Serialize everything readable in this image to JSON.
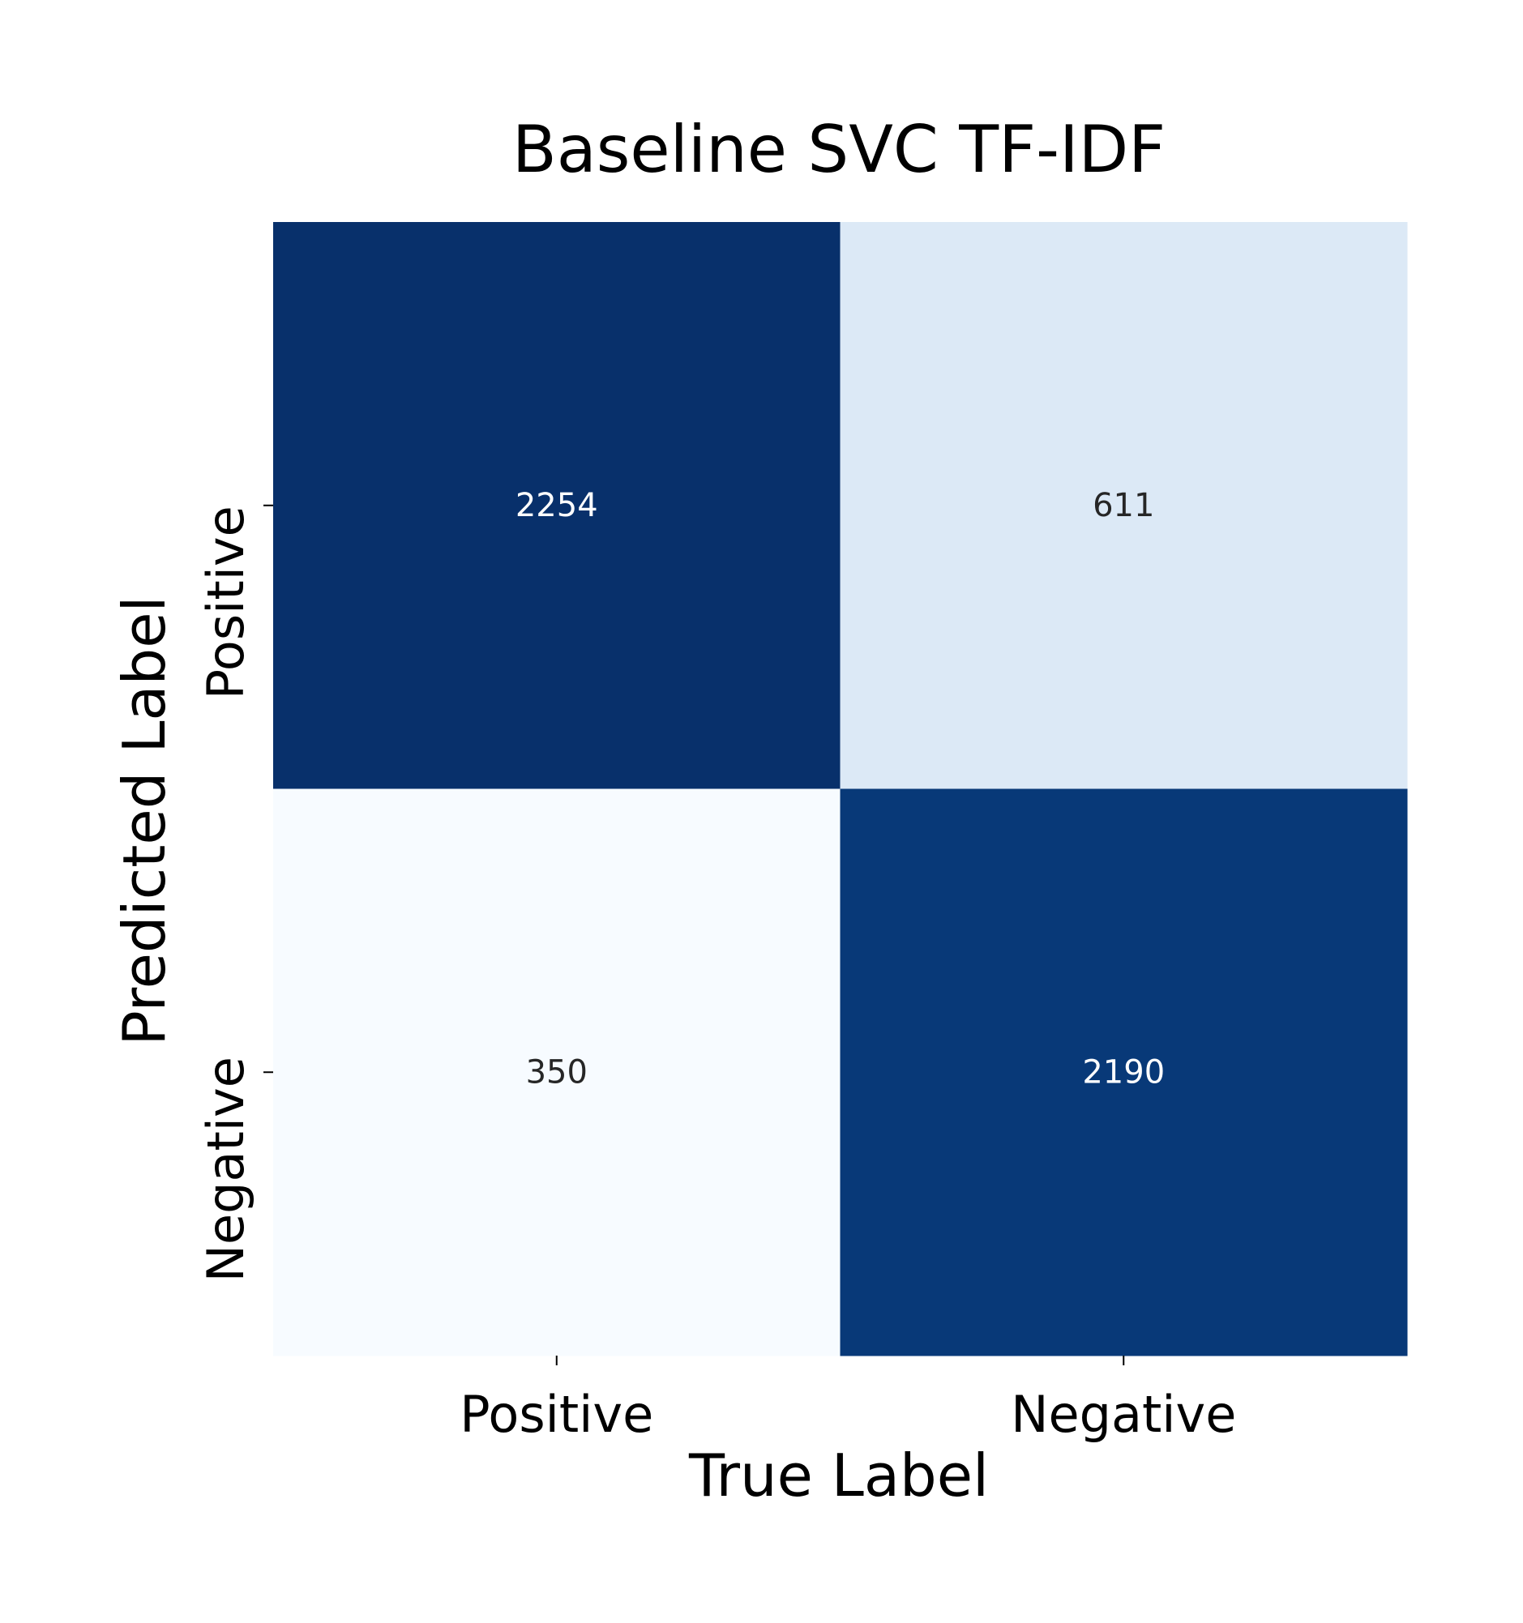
{
  "chart_data": {
    "type": "heatmap",
    "title": "Baseline SVC TF-IDF",
    "xlabel": "True Label",
    "ylabel": "Predicted Label",
    "x_categories": [
      "Positive",
      "Negative"
    ],
    "y_categories": [
      "Positive",
      "Negative"
    ],
    "values": [
      [
        2254,
        611
      ],
      [
        350,
        2190
      ]
    ],
    "colormap": "Blues",
    "colorbar": false,
    "grid": false,
    "colors": {
      "high": "#08306b",
      "mid_light": "#dbe9f6",
      "low": "#f7fbff",
      "dark_text": "#262626",
      "light_text": "#ffffff"
    }
  }
}
